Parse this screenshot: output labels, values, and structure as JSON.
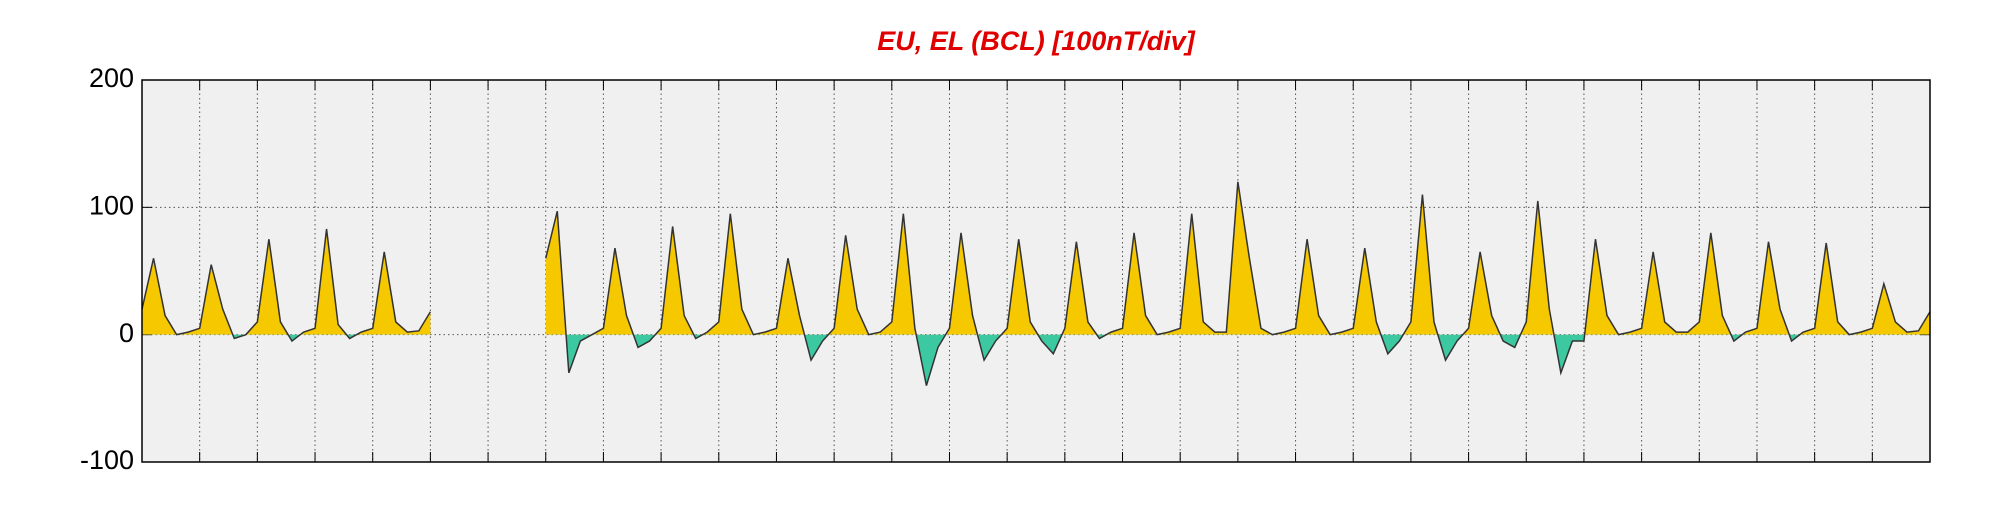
{
  "chart_data": {
    "type": "area-line",
    "title": "EU, EL (BCL)  [100nT/div]",
    "x": [
      0,
      0.2,
      0.4,
      0.6,
      0.8,
      1,
      1.2,
      1.4,
      1.6,
      1.8,
      2,
      2.2,
      2.4,
      2.6,
      2.8,
      3,
      3.2,
      3.4,
      3.6,
      3.8,
      4,
      4.2,
      4.4,
      4.6,
      4.8,
      5,
      5.2,
      5.4,
      5.6,
      5.8,
      6,
      6.2,
      6.4,
      6.6,
      6.8,
      7,
      7.2,
      7.4,
      7.6,
      7.8,
      8,
      8.2,
      8.4,
      8.6,
      8.8,
      9,
      9.2,
      9.4,
      9.6,
      9.8,
      10,
      10.2,
      10.4,
      10.6,
      10.8,
      11,
      11.2,
      11.4,
      11.6,
      11.8,
      12,
      12.2,
      12.4,
      12.6,
      12.8,
      13,
      13.2,
      13.4,
      13.6,
      13.8,
      14,
      14.2,
      14.4,
      14.6,
      14.8,
      15,
      15.2,
      15.4,
      15.6,
      15.8,
      16,
      16.2,
      16.4,
      16.6,
      16.8,
      17,
      17.2,
      17.4,
      17.6,
      17.8,
      18,
      18.2,
      18.4,
      18.6,
      18.8,
      19,
      19.2,
      19.4,
      19.6,
      19.8,
      20,
      20.2,
      20.4,
      20.6,
      20.8,
      21,
      21.2,
      21.4,
      21.6,
      21.8,
      22,
      22.2,
      22.4,
      22.6,
      22.8,
      23,
      23.2,
      23.4,
      23.6,
      23.8,
      24,
      24.2,
      24.4,
      24.6,
      24.8,
      25,
      25.2,
      25.4,
      25.6,
      25.8,
      26,
      26.2,
      26.4,
      26.6,
      26.8,
      27,
      27.2,
      27.4,
      27.6,
      27.8,
      28,
      28.2,
      28.4,
      28.6,
      28.8,
      29,
      29.2,
      29.4,
      29.6,
      29.8,
      30,
      30.2,
      30.4,
      30.6,
      30.8,
      31
    ],
    "series": [
      {
        "color": "#f5c800",
        "negative_color": "#3cc8a0",
        "line_color": "#333333",
        "values": [
          20,
          60,
          15,
          0,
          2,
          5,
          55,
          20,
          -3,
          0,
          10,
          75,
          10,
          -5,
          2,
          5,
          83,
          8,
          -3,
          2,
          5,
          65,
          10,
          2,
          3,
          18,
          null,
          null,
          null,
          null,
          null,
          null,
          null,
          null,
          null,
          60,
          97,
          -30,
          -5,
          0,
          5,
          68,
          15,
          -10,
          -5,
          5,
          85,
          15,
          -3,
          2,
          10,
          95,
          20,
          0,
          2,
          5,
          60,
          15,
          -20,
          -5,
          5,
          78,
          20,
          0,
          2,
          10,
          95,
          5,
          -40,
          -10,
          5,
          80,
          15,
          -20,
          -5,
          5,
          75,
          10,
          -5,
          -15,
          5,
          73,
          10,
          -3,
          2,
          5,
          80,
          15,
          0,
          2,
          5,
          95,
          10,
          2,
          2,
          120,
          60,
          5,
          0,
          2,
          5,
          75,
          15,
          0,
          2,
          5,
          68,
          10,
          -15,
          -5,
          10,
          110,
          10,
          -20,
          -5,
          5,
          65,
          15,
          -5,
          -10,
          10,
          105,
          20,
          -30,
          -5,
          -5,
          75,
          15,
          0,
          2,
          5,
          65,
          10,
          2,
          2,
          10,
          80,
          15,
          -5,
          2,
          5,
          73,
          20,
          -5,
          2,
          5,
          72,
          10,
          0,
          2,
          5,
          40,
          10,
          2,
          3,
          18
        ]
      }
    ],
    "xlim": [
      0,
      31
    ],
    "xticks": [
      0,
      1,
      2,
      3,
      4,
      5,
      6,
      7,
      8,
      9,
      10,
      11,
      12,
      13,
      14,
      15,
      16,
      17,
      18,
      19,
      20,
      21,
      22,
      23,
      24,
      25,
      26,
      27,
      28,
      29,
      30,
      31
    ],
    "ylim": [
      -100,
      200
    ],
    "yticks": [
      -100,
      0,
      100,
      200
    ],
    "grid": true
  }
}
